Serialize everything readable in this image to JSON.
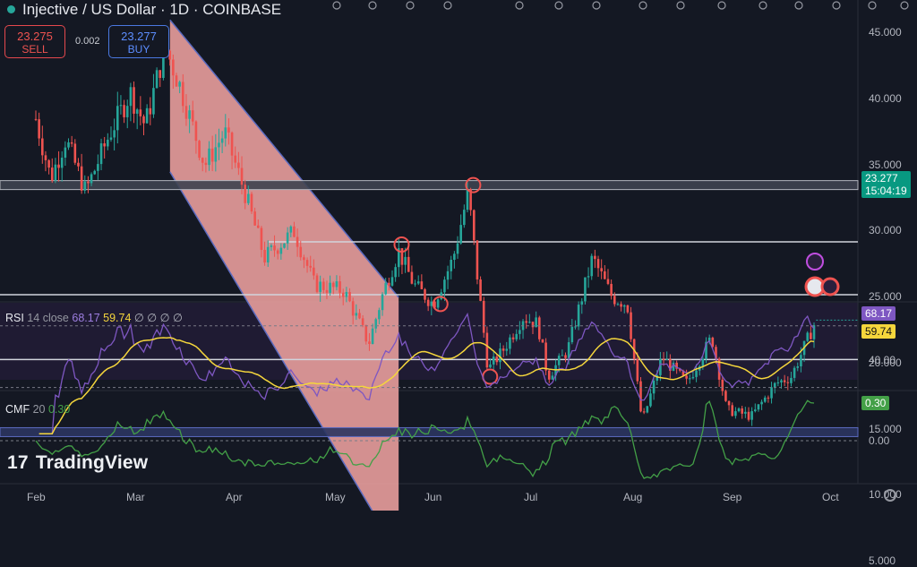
{
  "header": {
    "title": "Injective / US Dollar · 1D · COINBASE"
  },
  "trade": {
    "sell_price": "23.275",
    "sell_label": "SELL",
    "spread": "0.002",
    "buy_price": "23.277",
    "buy_label": "BUY"
  },
  "price_axis": {
    "ticks": [
      "45.000",
      "40.000",
      "35.000",
      "30.000",
      "25.000",
      "20.000",
      "15.000",
      "10.000",
      "5.000"
    ],
    "last_price": "23.277",
    "countdown": "15:04:19"
  },
  "rsi": {
    "label": "RSI",
    "params": "14 close",
    "rsi_value": "68.17",
    "ma_value": "59.74",
    "placeholders": "∅ ∅ ∅ ∅",
    "tick": "40.00"
  },
  "cmf": {
    "label": "CMF",
    "params": "20",
    "value": "0.30",
    "tick": "0.00"
  },
  "x_axis": {
    "labels": [
      "Feb",
      "Mar",
      "Apr",
      "May",
      "Jun",
      "Jul",
      "Aug",
      "Sep",
      "Oct"
    ]
  },
  "branding": "TradingView",
  "colors": {
    "up": "#26a69a",
    "down": "#ef5350",
    "rsi_line": "#7e57c2",
    "rsi_ma": "#f5d63c",
    "cmf_line": "#43a047",
    "channel_fill": "#f4a6a3"
  },
  "chart_data": {
    "type": "candlestick",
    "title": "Injective / US Dollar · 1D · COINBASE",
    "symbol": "INJ/USD",
    "timeframe": "1D",
    "ylim": [
      5,
      47
    ],
    "yticks": [
      45,
      40,
      35,
      30,
      25,
      20,
      15,
      10,
      5
    ],
    "x_categories": [
      "Feb",
      "Mar",
      "Apr",
      "May",
      "Jun",
      "Jul",
      "Aug",
      "Sep",
      "Oct"
    ],
    "last_price": 23.277,
    "close_path": [
      {
        "month": 0.0,
        "price": 38.5
      },
      {
        "month": 0.15,
        "price": 34.0
      },
      {
        "month": 0.3,
        "price": 37.0
      },
      {
        "month": 0.5,
        "price": 33.0
      },
      {
        "month": 0.75,
        "price": 37.5
      },
      {
        "month": 0.95,
        "price": 40.5
      },
      {
        "month": 1.1,
        "price": 38.0
      },
      {
        "month": 1.3,
        "price": 44.0
      },
      {
        "month": 1.45,
        "price": 41.0
      },
      {
        "month": 1.7,
        "price": 35.0
      },
      {
        "month": 1.9,
        "price": 37.5
      },
      {
        "month": 2.1,
        "price": 33.0
      },
      {
        "month": 2.3,
        "price": 28.0
      },
      {
        "month": 2.6,
        "price": 30.0
      },
      {
        "month": 2.8,
        "price": 26.0
      },
      {
        "month": 3.1,
        "price": 25.5
      },
      {
        "month": 3.35,
        "price": 21.5
      },
      {
        "month": 3.5,
        "price": 25.5
      },
      {
        "month": 3.65,
        "price": 28.5
      },
      {
        "month": 3.8,
        "price": 26.0
      },
      {
        "month": 4.0,
        "price": 24.5
      },
      {
        "month": 4.2,
        "price": 28.0
      },
      {
        "month": 4.35,
        "price": 33.0
      },
      {
        "month": 4.45,
        "price": 26.0
      },
      {
        "month": 4.55,
        "price": 19.5
      },
      {
        "month": 4.7,
        "price": 21.0
      },
      {
        "month": 4.9,
        "price": 23.5
      },
      {
        "month": 5.05,
        "price": 23.0
      },
      {
        "month": 5.15,
        "price": 19.0
      },
      {
        "month": 5.35,
        "price": 21.0
      },
      {
        "month": 5.6,
        "price": 28.0
      },
      {
        "month": 5.8,
        "price": 25.0
      },
      {
        "month": 5.95,
        "price": 24.5
      },
      {
        "month": 6.1,
        "price": 15.5
      },
      {
        "month": 6.3,
        "price": 20.5
      },
      {
        "month": 6.55,
        "price": 18.5
      },
      {
        "month": 6.8,
        "price": 22.0
      },
      {
        "month": 6.95,
        "price": 16.5
      },
      {
        "month": 7.2,
        "price": 16.0
      },
      {
        "month": 7.45,
        "price": 18.5
      },
      {
        "month": 7.6,
        "price": 19.0
      },
      {
        "month": 7.85,
        "price": 23.3
      }
    ],
    "horizontal_levels": [
      33.5,
      29.2,
      25.2,
      20.3,
      14.8
    ],
    "channel": {
      "start_month": 1.35,
      "end_month": 3.65,
      "top_start": 46.0,
      "top_end": 25.0,
      "bottom_start": 34.5,
      "bottom_end": 5.5
    },
    "marked_points": [
      {
        "month": 3.68,
        "price": 29.0
      },
      {
        "month": 4.07,
        "price": 24.5
      },
      {
        "month": 4.4,
        "price": 33.5
      },
      {
        "month": 4.57,
        "price": 19.0
      }
    ],
    "rsi": {
      "length": 14,
      "source": "close",
      "value": 68.17,
      "ma": 59.74
    },
    "cmf": {
      "length": 20,
      "value": 0.3
    }
  }
}
